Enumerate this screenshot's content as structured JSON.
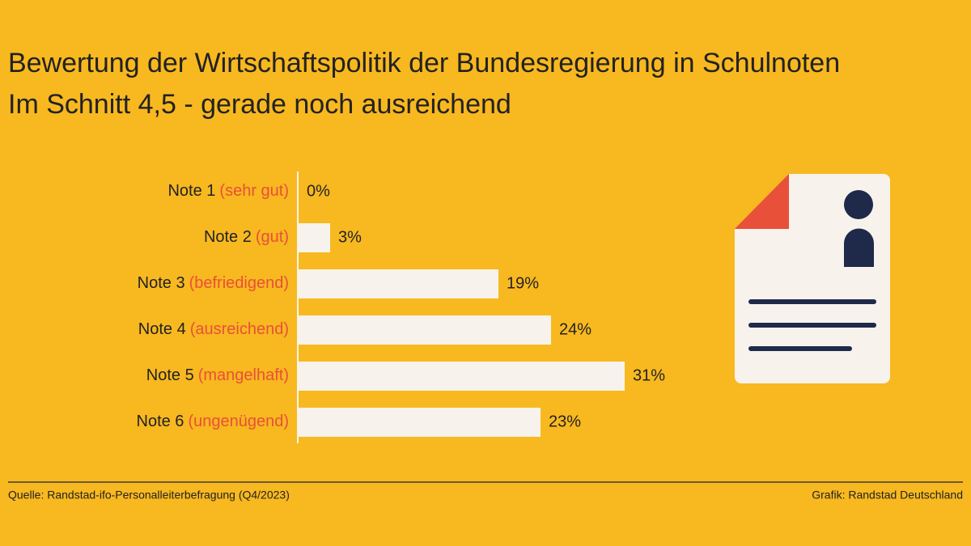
{
  "chart_data": {
    "type": "bar",
    "orientation": "horizontal",
    "title": "Bewertung der Wirtschaftspolitik der Bundesregierung in Schulnoten",
    "subtitle": "Im Schnitt 4,5 - gerade noch ausreichend",
    "categories": [
      "Note 1",
      "Note 2",
      "Note 3",
      "Note 4",
      "Note 5",
      "Note 6"
    ],
    "category_notes": [
      "(sehr gut)",
      "(gut)",
      "(befriedigend)",
      "(ausreichend)",
      "(mangelhaft)",
      "(ungenügend)"
    ],
    "values": [
      0,
      3,
      19,
      24,
      31,
      23
    ],
    "value_labels": [
      "0%",
      "3%",
      "19%",
      "24%",
      "31%",
      "23%"
    ],
    "color": "#f7f3ec",
    "note_color": "#e8503a",
    "source": "Quelle: Randstad-ifo-Personalleiterbefragung (Q4/2023)",
    "credit": "Grafik: Randstad Deutschland"
  }
}
